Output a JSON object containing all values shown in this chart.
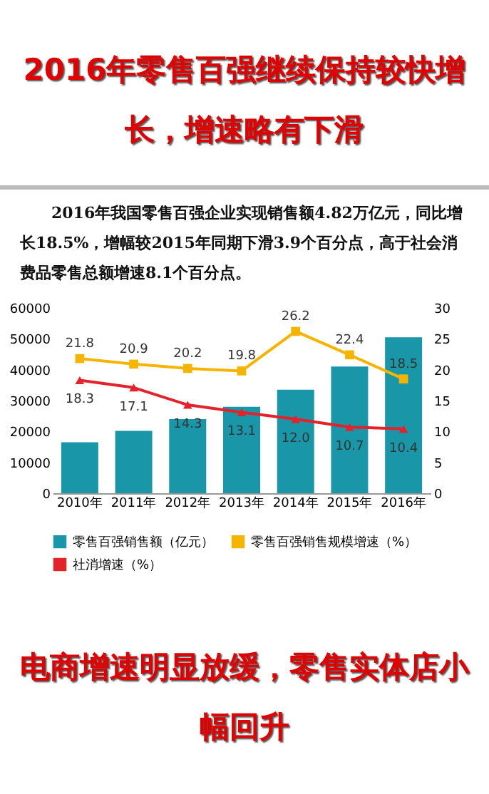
{
  "chart_data": {
    "type": "bar",
    "title": "2016年零售百强继续保持较快增长，增速略有下滑",
    "subtitle": "2016年我国零售百强企业实现销售额4.82万亿元，同比增长18.5%，增幅较2015年同期下滑3.9个百分点，高于社会消费品零售总额增速8.1个百分点。",
    "annotations": [
      "电商增速明显放缓，零售实体店小幅回升"
    ],
    "categories": [
      "2010年",
      "2011年",
      "2012年",
      "2013年",
      "2014年",
      "2015年",
      "2016年"
    ],
    "series": [
      {
        "name": "零售百强销售额（亿元）",
        "color": "#1996a8",
        "values": [
          16500,
          20200,
          24000,
          28000,
          33500,
          41000,
          50500
        ]
      },
      {
        "name": "零售百强销售规模增速（%）",
        "type": "line",
        "axis": "y2",
        "color": "#f5b400",
        "marker": "square",
        "values": [
          21.8,
          20.9,
          20.2,
          19.8,
          26.2,
          22.4,
          18.5
        ],
        "value_labels": [
          "21.8",
          "20.9",
          "20.2",
          "19.8",
          "26.2",
          "22.4",
          "18.5"
        ]
      },
      {
        "name": "社消增速（%）",
        "type": "line",
        "axis": "y2",
        "color": "#e3232c",
        "marker": "triangle",
        "values": [
          18.3,
          17.1,
          14.3,
          13.1,
          12.0,
          10.7,
          10.4
        ],
        "value_labels": [
          "18.3",
          "17.1",
          "14.3",
          "13.1",
          "12.0",
          "10.7",
          "10.4"
        ]
      }
    ],
    "ylim": [
      0,
      60000
    ],
    "yticks": [
      0,
      10000,
      20000,
      30000,
      40000,
      50000,
      60000
    ],
    "y2lim": [
      0,
      30
    ],
    "y2ticks": [
      0,
      5,
      10,
      15,
      20,
      25,
      30
    ],
    "legend": "bottom"
  }
}
